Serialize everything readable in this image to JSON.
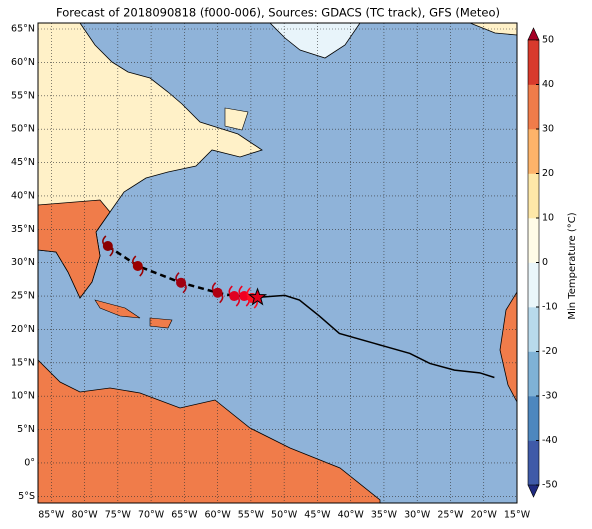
{
  "title": "Forecast of 2018090818 (f000-006), Sources: GDACS (TC track), GFS (Meteo)",
  "map": {
    "lon_range": [
      -87,
      -15
    ],
    "lat_range": [
      -6,
      65.9
    ],
    "lon_ticks": [
      {
        "value": -85,
        "label": "85°W"
      },
      {
        "value": -80,
        "label": "80°W"
      },
      {
        "value": -75,
        "label": "75°W"
      },
      {
        "value": -70,
        "label": "70°W"
      },
      {
        "value": -65,
        "label": "65°W"
      },
      {
        "value": -60,
        "label": "60°W"
      },
      {
        "value": -55,
        "label": "55°W"
      },
      {
        "value": -50,
        "label": "50°W"
      },
      {
        "value": -45,
        "label": "45°W"
      },
      {
        "value": -40,
        "label": "40°W"
      },
      {
        "value": -35,
        "label": "35°W"
      },
      {
        "value": -30,
        "label": "30°W"
      },
      {
        "value": -25,
        "label": "25°W"
      },
      {
        "value": -20,
        "label": "20°W"
      },
      {
        "value": -15,
        "label": "15°W"
      }
    ],
    "lat_ticks": [
      {
        "value": 65,
        "label": "65°N"
      },
      {
        "value": 60,
        "label": "60°N"
      },
      {
        "value": 55,
        "label": "55°N"
      },
      {
        "value": 50,
        "label": "50°N"
      },
      {
        "value": 45,
        "label": "45°N"
      },
      {
        "value": 40,
        "label": "40°N"
      },
      {
        "value": 35,
        "label": "35°N"
      },
      {
        "value": 30,
        "label": "30°N"
      },
      {
        "value": 25,
        "label": "25°N"
      },
      {
        "value": 20,
        "label": "20°N"
      },
      {
        "value": 15,
        "label": "15°N"
      },
      {
        "value": 10,
        "label": "10°N"
      },
      {
        "value": 5,
        "label": "5°N"
      },
      {
        "value": 0,
        "label": "0°"
      },
      {
        "value": -5,
        "label": "5°S"
      }
    ]
  },
  "track": {
    "past_lon": [
      -76.5,
      -72,
      -65.5,
      -60,
      -57.5,
      -56,
      -54.8
    ],
    "past_lat": [
      32.5,
      29.5,
      27,
      25.5,
      25,
      25,
      24.7
    ],
    "past_colors": [
      "#8b0000",
      "#9b0000",
      "#a00010",
      "#b00010",
      "#e00020",
      "#f00020",
      "#ff1020"
    ],
    "current_lon": -54,
    "current_lat": 24.8,
    "forecast_lon": [
      -54,
      -49.9,
      -47.7,
      -44.7,
      -41.7,
      -36.4,
      -31.1,
      -28.1,
      -24.4,
      -20.6,
      -18.4
    ],
    "forecast_lat": [
      24.8,
      25.1,
      24.4,
      22,
      19.4,
      17.9,
      16.4,
      14.9,
      13.9,
      13.5,
      12.8
    ]
  },
  "colorbar": {
    "label": "Min Temperature (°C)",
    "range": [
      -50,
      50
    ],
    "ticks": [
      50,
      40,
      30,
      20,
      10,
      0,
      -10,
      -20,
      -30,
      -40,
      -50
    ],
    "colors": [
      "#1f2a80",
      "#3f5aa8",
      "#4d87be",
      "#7fb2d6",
      "#b8daec",
      "#eaf6fa",
      "#fffce8",
      "#fee8a8",
      "#fdb36a",
      "#f07c4a",
      "#d83a2c",
      "#a50026"
    ]
  }
}
